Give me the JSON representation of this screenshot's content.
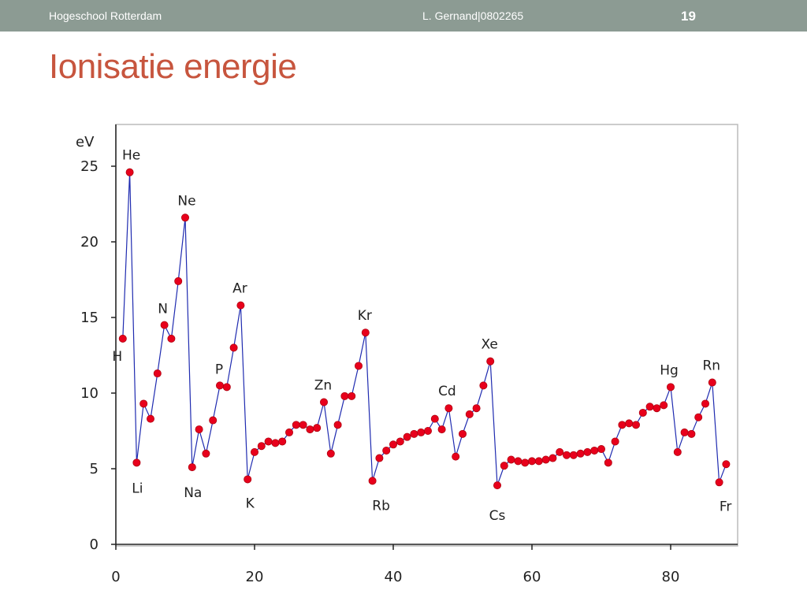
{
  "header": {
    "left": "Hogeschool Rotterdam",
    "center": "L. Gernand|0802265",
    "page_number": "19"
  },
  "slide": {
    "title": "Ionisatie energie"
  },
  "colors": {
    "header_bar": "#8c9b93",
    "title": "#c7553e",
    "line": "#1f2bb0",
    "marker": "#e8001c"
  },
  "chart_data": {
    "type": "line",
    "ylabel": "eV",
    "xlabel": "",
    "xlim": [
      0,
      90
    ],
    "ylim": [
      0,
      28
    ],
    "xticks": [
      0,
      20,
      40,
      60,
      80
    ],
    "yticks": [
      0,
      5,
      10,
      15,
      20,
      25
    ],
    "grid": false,
    "legend": "none",
    "series": [
      {
        "x": [
          1,
          2,
          3,
          4,
          5,
          6,
          7,
          8,
          9,
          10,
          11,
          12,
          13,
          14,
          15,
          16,
          17,
          18,
          19,
          20,
          21,
          22,
          23,
          24,
          25,
          26,
          27,
          28,
          29,
          30,
          31,
          32,
          33,
          34,
          35,
          36,
          37,
          38,
          39,
          40,
          41,
          42,
          43,
          44,
          45,
          46,
          47,
          48,
          49,
          50,
          51,
          52,
          53,
          54,
          55,
          56,
          57,
          58,
          59,
          60,
          61,
          62,
          63,
          64,
          65,
          66,
          67,
          68,
          69,
          70,
          71,
          72,
          73,
          74,
          75,
          76,
          77,
          78,
          79,
          80,
          81,
          82,
          83,
          84,
          85,
          86,
          87,
          88
        ],
        "y": [
          13.6,
          24.6,
          5.4,
          9.3,
          8.3,
          11.3,
          14.5,
          13.6,
          17.4,
          21.6,
          5.1,
          7.6,
          6.0,
          8.2,
          10.5,
          10.4,
          13.0,
          15.8,
          4.3,
          6.1,
          6.5,
          6.8,
          6.7,
          6.8,
          7.4,
          7.9,
          7.9,
          7.6,
          7.7,
          9.4,
          6.0,
          7.9,
          9.8,
          9.8,
          11.8,
          14.0,
          4.2,
          5.7,
          6.2,
          6.6,
          6.8,
          7.1,
          7.3,
          7.4,
          7.5,
          8.3,
          7.6,
          9.0,
          5.8,
          7.3,
          8.6,
          9.0,
          10.5,
          12.1,
          3.9,
          5.2,
          5.6,
          5.5,
          5.4,
          5.5,
          5.5,
          5.6,
          5.7,
          6.1,
          5.9,
          5.9,
          6.0,
          6.1,
          6.2,
          6.3,
          5.4,
          6.8,
          7.9,
          8.0,
          7.9,
          8.7,
          9.1,
          9.0,
          9.2,
          10.4,
          6.1,
          7.4,
          7.3,
          8.4,
          9.3,
          10.7,
          4.1,
          5.3
        ]
      }
    ],
    "annotations": [
      {
        "text": "He",
        "x": 2,
        "y": 24.6
      },
      {
        "text": "H",
        "x": 1,
        "y": 13.6
      },
      {
        "text": "Li",
        "x": 3,
        "y": 5.4
      },
      {
        "text": "N",
        "x": 7,
        "y": 14.5
      },
      {
        "text": "Ne",
        "x": 10,
        "y": 21.6
      },
      {
        "text": "Na",
        "x": 11,
        "y": 5.1
      },
      {
        "text": "P",
        "x": 15,
        "y": 10.5
      },
      {
        "text": "Ar",
        "x": 18,
        "y": 15.8
      },
      {
        "text": "K",
        "x": 19,
        "y": 4.3
      },
      {
        "text": "Zn",
        "x": 30,
        "y": 9.4
      },
      {
        "text": "Kr",
        "x": 36,
        "y": 14.0
      },
      {
        "text": "Rb",
        "x": 37,
        "y": 4.2
      },
      {
        "text": "Cd",
        "x": 48,
        "y": 9.0
      },
      {
        "text": "Xe",
        "x": 54,
        "y": 12.1
      },
      {
        "text": "Cs",
        "x": 55,
        "y": 3.9
      },
      {
        "text": "Hg",
        "x": 80,
        "y": 10.4
      },
      {
        "text": "Rn",
        "x": 86,
        "y": 10.7
      },
      {
        "text": "Fr",
        "x": 87,
        "y": 4.1
      }
    ]
  }
}
